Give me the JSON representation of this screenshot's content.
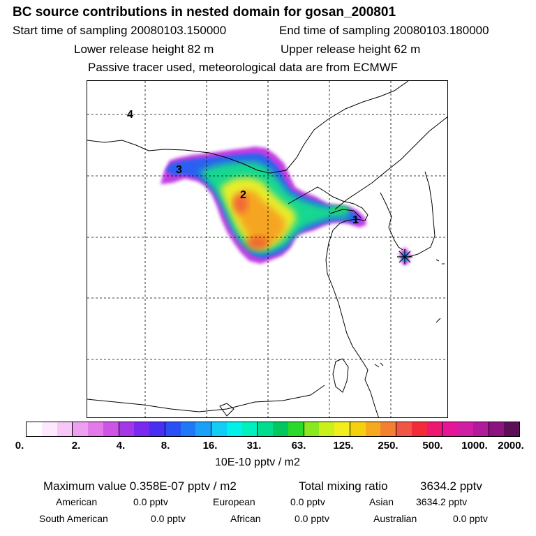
{
  "header": {
    "title": "BC  source contributions in nested domain for gosan_200801",
    "start_label": "Start time of sampling 20080103.150000",
    "end_label": "End time of sampling 20080103.180000",
    "lower_label": "Lower release height   82 m",
    "upper_label": "Upper release height   62 m",
    "tracer_note": "Passive tracer used, meteorological data are from ECMWF"
  },
  "map": {
    "markers": [
      {
        "label": "1"
      },
      {
        "label": "2"
      },
      {
        "label": "3"
      },
      {
        "label": "4"
      }
    ]
  },
  "colorbar": {
    "colors": [
      "#ffffff",
      "#fde8fd",
      "#f7c8f7",
      "#eea0f0",
      "#e27ae8",
      "#cc55e6",
      "#a238e6",
      "#7a2af0",
      "#4a2ef2",
      "#2a50f5",
      "#1f78f5",
      "#1aa0f7",
      "#12cdf5",
      "#00f0ea",
      "#00f0bd",
      "#00dd8e",
      "#00c85f",
      "#2ada2a",
      "#8ae81e",
      "#c8f01c",
      "#f2ee1e",
      "#f5d010",
      "#f5a820",
      "#f38030",
      "#f05545",
      "#f22a3a",
      "#ef1870",
      "#e61496",
      "#cf1ea2",
      "#b11a9a",
      "#8a1580",
      "#5c0e57"
    ],
    "ticks": [
      "0.",
      "2.",
      "4.",
      "8.",
      "16.",
      "31.",
      "63.",
      "125.",
      "250.",
      "500.",
      "1000.",
      "2000."
    ],
    "unit_label": "10E-10 pptv / m2"
  },
  "stats": {
    "max_label": "Maximum value  0.358E-07 pptv / m2",
    "total_label": "Total mixing ratio",
    "total_value": "3634.2 pptv",
    "regions": [
      {
        "name": "American",
        "value": "0.0 pptv"
      },
      {
        "name": "European",
        "value": "0.0 pptv"
      },
      {
        "name": "Asian",
        "value": "3634.2 pptv"
      },
      {
        "name": "South American",
        "value": "0.0 pptv"
      },
      {
        "name": "African",
        "value": "0.0 pptv"
      },
      {
        "name": "Australian",
        "value": "0.0 pptv"
      }
    ]
  }
}
